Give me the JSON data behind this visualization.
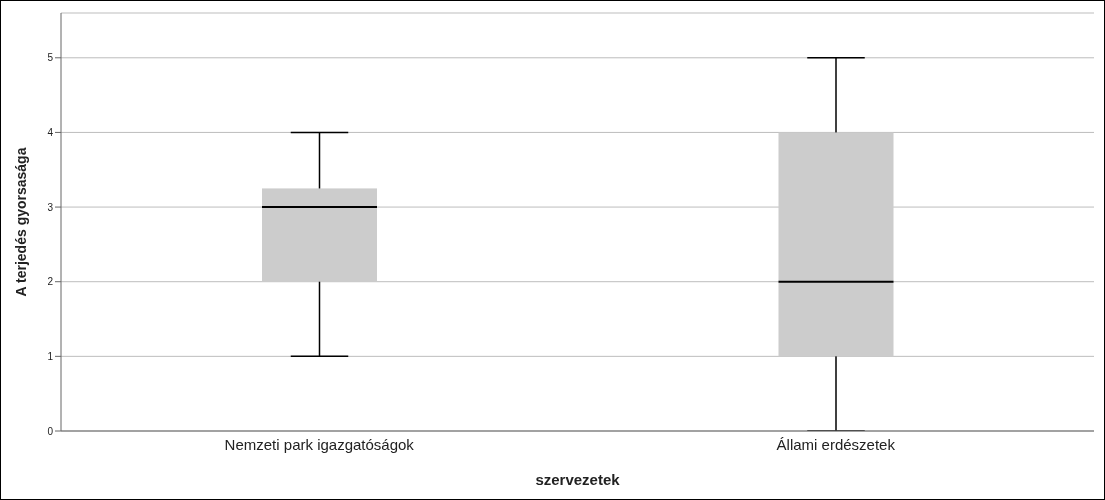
{
  "chart_data": {
    "type": "box",
    "xlabel": "szervezetek",
    "ylabel": "A terjedés gyorsasága",
    "categories": [
      "Nemzeti park igazgatóságok",
      "Állami erdészetek"
    ],
    "boxes": [
      {
        "low": 1,
        "q1": 2,
        "median": 3,
        "q3": 3.25,
        "high": 4
      },
      {
        "low": 0,
        "q1": 1,
        "median": 2,
        "q3": 4,
        "high": 5
      }
    ],
    "color": "#cccccc",
    "ylim": [
      0,
      5.6
    ],
    "yticks": [
      0,
      1,
      2,
      3,
      4,
      5
    ],
    "grid": "y"
  }
}
